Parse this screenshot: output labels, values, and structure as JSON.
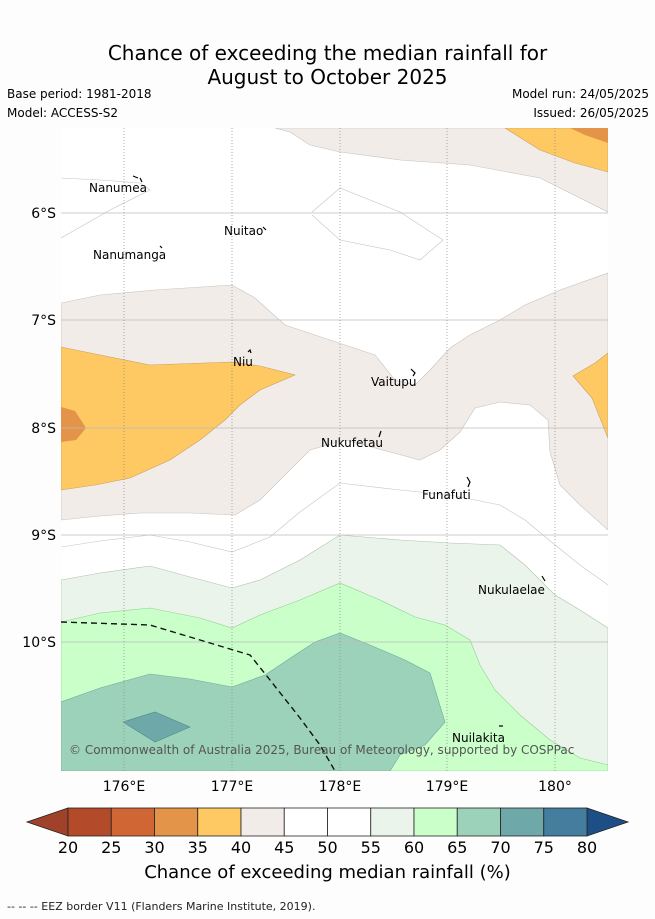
{
  "title_line1": "Chance of exceeding the median rainfall for",
  "title_line2": "August to October 2025",
  "base_period": "Base period: 1981-2018",
  "model": "Model: ACCESS-S2",
  "model_run": "Model run: 24/05/2025",
  "issued": "Issued: 26/05/2025",
  "copyright": "© Commonwealth of Australia 2025, Bureau of Meteorology, supported by COSPPac",
  "lat_labels": [
    "6°S",
    "7°S",
    "8°S",
    "9°S",
    "10°S"
  ],
  "lon_labels": [
    "176°E",
    "177°E",
    "178°E",
    "179°E",
    "180°"
  ],
  "places": {
    "nanumea": "Nanumea",
    "nuitao": "Nuitao",
    "nanumanga": "Nanumanga",
    "niu": "Niu",
    "vaitupu": "Vaitupu",
    "nukufetau": "Nukufetau",
    "funafuti": "Funafuti",
    "nukulaelae": "Nukulaelae",
    "nuilakita": "Nuilakita"
  },
  "colorbar": {
    "ticks": [
      "20",
      "25",
      "30",
      "35",
      "40",
      "45",
      "50",
      "55",
      "60",
      "65",
      "70",
      "75",
      "80"
    ],
    "colors": [
      "#b34a2a",
      "#cf6634",
      "#e39448",
      "#fec862",
      "#f1ece8",
      "#ffffff",
      "#ffffff",
      "#ebf4ea",
      "#caffca",
      "#9dd2ba",
      "#6fa8a8",
      "#447d9d"
    ],
    "low_color": "#a0422a",
    "high_color": "#1d4f86",
    "title": "Chance of exceeding median rainfall (%)"
  },
  "footnote": "-- -- -- EEZ border V11 (Flanders Marine Institute, 2019)."
}
